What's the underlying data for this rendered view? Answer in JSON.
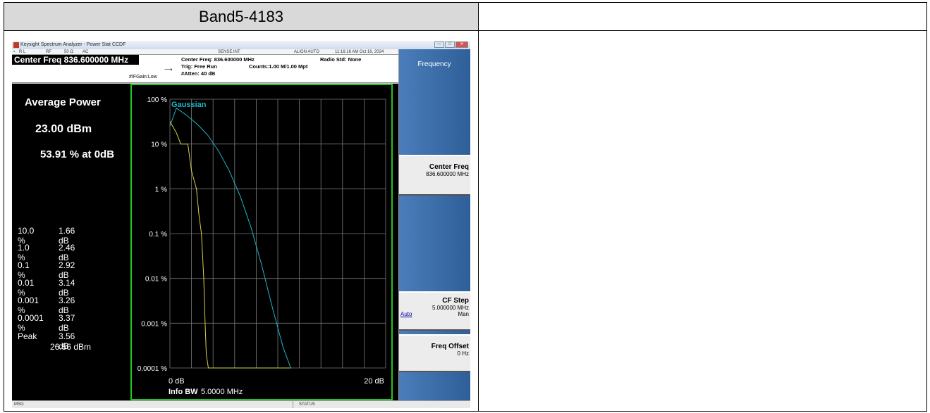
{
  "table": {
    "header_left": "Band5-4183",
    "header_right": ""
  },
  "window": {
    "title": "Keysight Spectrum Analyzer - Power Stat CCDF",
    "btn_min": "—",
    "btn_max": "□",
    "btn_close": "✕"
  },
  "status_row": {
    "rl": "R L",
    "rf": "RF",
    "ohm": "50 Ω",
    "ac": "AC",
    "sense": "SENSE:INT",
    "align": "ALIGN AUTO",
    "datetime": "11:16:16 AM Oct 16, 2024"
  },
  "info": {
    "center_freq_big": "Center Freq 836.600000 MHz",
    "ifgain": "#IFGain:Low",
    "center_freq_small": "Center Freq: 836.600000 MHz",
    "trig": "Trig: Free Run",
    "atten": "#Atten: 40 dB",
    "counts": "Counts:1.00 M/1.00 Mpt",
    "radio_std": "Radio Std: None"
  },
  "left_panel": {
    "title": "Average Power",
    "dbm": "23.00 dBm",
    "pct": "53.91 % at 0dB",
    "rows": [
      {
        "p": "10.0 %",
        "v": "1.66 dB"
      },
      {
        "p": "1.0 %",
        "v": "2.46 dB"
      },
      {
        "p": "0.1 %",
        "v": "2.92 dB"
      },
      {
        "p": "0.01 %",
        "v": "3.14 dB"
      },
      {
        "p": "0.001 %",
        "v": "3.26 dB"
      },
      {
        "p": "0.0001 %",
        "v": "3.37 dB"
      },
      {
        "p": "Peak",
        "v": "3.56 dB"
      }
    ],
    "peak_dbm": "26.56 dBm"
  },
  "graph": {
    "legend": "Gaussian",
    "x_left": "0 dB",
    "x_right": "20 dB",
    "info_bw_label": "Info BW",
    "info_bw_value": "5.0000 MHz",
    "yticks": [
      "100 %",
      "10 %",
      "1 %",
      "0.1 %",
      "0.01 %",
      "0.001 %",
      "0.0001 %"
    ]
  },
  "softkeys": {
    "menu_title": "Frequency",
    "center_freq": {
      "t": "Center Freq",
      "v": "836.600000 MHz"
    },
    "cf_step": {
      "t": "CF Step",
      "v": "5.000000 MHz",
      "auto": "Auto",
      "man": "Man"
    },
    "freq_offset": {
      "t": "Freq Offset",
      "v": "0 Hz"
    }
  },
  "bottom": {
    "msg": "MSG",
    "status": "STATUS"
  },
  "colors": {
    "gaussian": "#1fb5c4",
    "measured": "#d8d24a",
    "border_green": "#22c522"
  }
}
